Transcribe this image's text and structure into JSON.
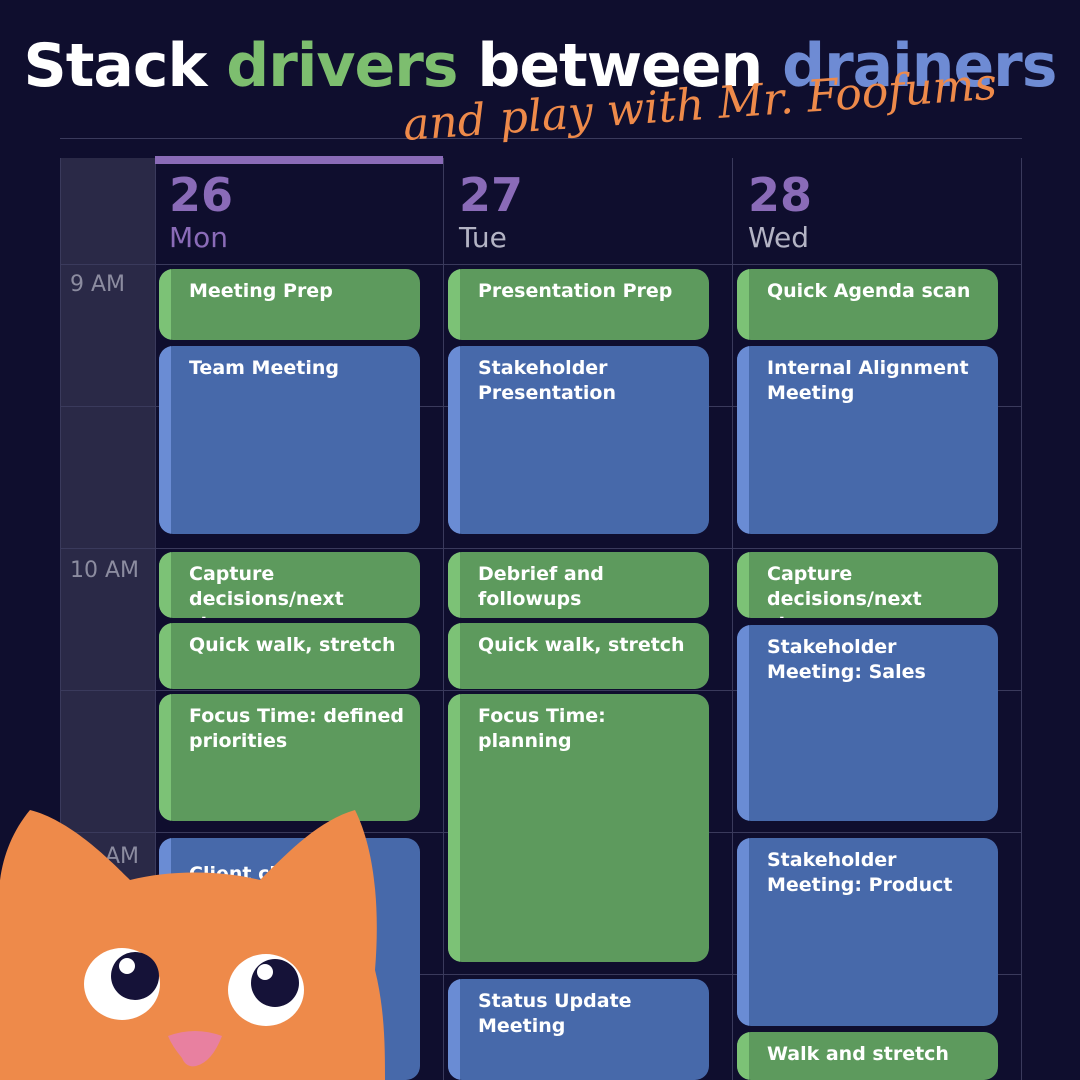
{
  "title": {
    "part1": "Stack ",
    "drivers": "drivers",
    "part2": " between ",
    "drainers": "drainers"
  },
  "subtitle": "and play with Mr. Foofums",
  "days": [
    {
      "number": "26",
      "name": "Mon"
    },
    {
      "number": "27",
      "name": "Tue"
    },
    {
      "number": "28",
      "name": "Wed"
    }
  ],
  "times": [
    "9 AM",
    "10 AM",
    "11 AM"
  ],
  "events": {
    "mon": [
      {
        "label": "Meeting Prep",
        "type": "driver"
      },
      {
        "label": "Team Meeting",
        "type": "drainer"
      },
      {
        "label": "Capture decisions/next steps",
        "type": "driver"
      },
      {
        "label": "Quick walk, stretch",
        "type": "driver"
      },
      {
        "label": "Focus Time: defined priorities",
        "type": "driver"
      },
      {
        "label": "Client check-in",
        "type": "drainer"
      }
    ],
    "tue": [
      {
        "label": "Presentation Prep",
        "type": "driver"
      },
      {
        "label": "Stakeholder Presentation",
        "type": "drainer"
      },
      {
        "label": "Debrief and followups",
        "type": "driver"
      },
      {
        "label": "Quick walk, stretch",
        "type": "driver"
      },
      {
        "label": "Focus Time: planning",
        "type": "driver"
      },
      {
        "label": "Status Update Meeting",
        "type": "drainer"
      }
    ],
    "wed": [
      {
        "label": "Quick Agenda scan",
        "type": "driver"
      },
      {
        "label": "Internal Alignment Meeting",
        "type": "drainer"
      },
      {
        "label": "Capture decisions/next steps",
        "type": "driver"
      },
      {
        "label": "Stakeholder Meeting: Sales",
        "type": "drainer"
      },
      {
        "label": "Stakeholder Meeting: Product",
        "type": "drainer"
      },
      {
        "label": "Walk and stretch",
        "type": "driver"
      }
    ]
  },
  "colors": {
    "driver": "#5d9a5d",
    "drainer": "#4769aa",
    "accent": "#8a6bb8",
    "cat": "#ee8a4a"
  },
  "mascot": "cat-icon"
}
